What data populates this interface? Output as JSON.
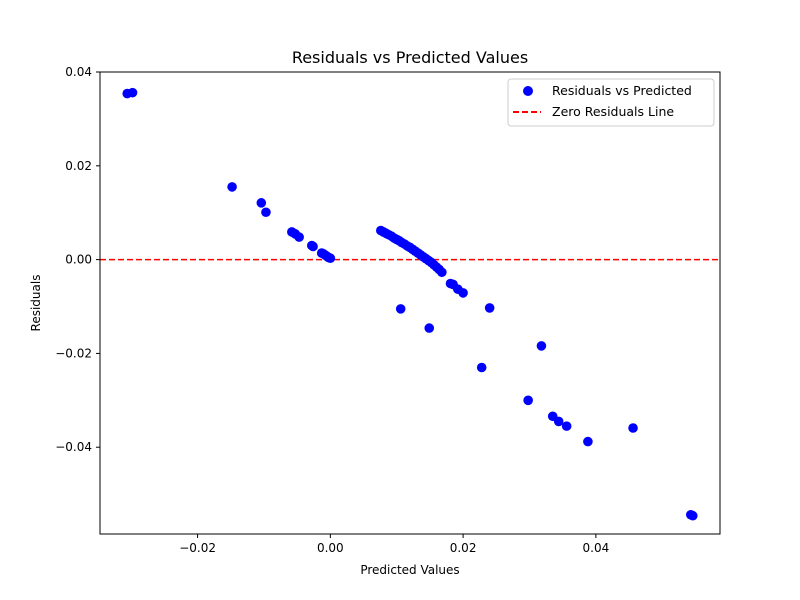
{
  "chart_data": {
    "type": "scatter",
    "title": "Residuals vs Predicted Values",
    "xlabel": "Predicted Values",
    "ylabel": "Residuals",
    "xlim": [
      -0.0347,
      0.0587
    ],
    "ylim": [
      -0.0585,
      0.04
    ],
    "xticks": [
      -0.02,
      0.0,
      0.02,
      0.04
    ],
    "xtick_labels": [
      "−0.02",
      "0.00",
      "0.02",
      "0.04"
    ],
    "yticks": [
      -0.04,
      -0.02,
      0.0,
      0.02,
      0.04
    ],
    "ytick_labels": [
      "−0.04",
      "−0.02",
      "0.00",
      "0.02",
      "0.04"
    ],
    "grid": false,
    "legend_position": "top-right",
    "series": [
      {
        "name": "Residuals vs Predicted",
        "kind": "points",
        "color": "#0000ff",
        "points": [
          [
            -0.0306,
            0.0354
          ],
          [
            -0.0298,
            0.0356
          ],
          [
            -0.0148,
            0.0155
          ],
          [
            -0.0104,
            0.0121
          ],
          [
            -0.0097,
            0.0101
          ],
          [
            -0.0058,
            0.0059
          ],
          [
            -0.0053,
            0.0055
          ],
          [
            -0.0047,
            0.0048
          ],
          [
            -0.0028,
            0.003
          ],
          [
            -0.0026,
            0.0028
          ],
          [
            -0.0013,
            0.0014
          ],
          [
            -0.001,
            0.0012
          ],
          [
            -0.0007,
            0.0009
          ],
          [
            -0.0004,
            0.0006
          ],
          [
            -0.0002,
            0.0004
          ],
          [
            0.0,
            0.0003
          ],
          [
            0.0076,
            0.0062
          ],
          [
            0.008,
            0.0059
          ],
          [
            0.0084,
            0.0056
          ],
          [
            0.0088,
            0.0053
          ],
          [
            0.0092,
            0.005
          ],
          [
            0.0096,
            0.0046
          ],
          [
            0.01,
            0.0043
          ],
          [
            0.0104,
            0.004
          ],
          [
            0.0108,
            0.0036
          ],
          [
            0.0112,
            0.0033
          ],
          [
            0.0116,
            0.0029
          ],
          [
            0.012,
            0.0026
          ],
          [
            0.0124,
            0.0022
          ],
          [
            0.0128,
            0.0018
          ],
          [
            0.0132,
            0.0014
          ],
          [
            0.0136,
            0.001
          ],
          [
            0.014,
            0.0006
          ],
          [
            0.0144,
            0.0002
          ],
          [
            0.0148,
            -0.0002
          ],
          [
            0.0152,
            -0.0006
          ],
          [
            0.0156,
            -0.0011
          ],
          [
            0.016,
            -0.0016
          ],
          [
            0.0164,
            -0.0021
          ],
          [
            0.0168,
            -0.0027
          ],
          [
            0.0181,
            -0.0051
          ],
          [
            0.0185,
            -0.0053
          ],
          [
            0.0192,
            -0.0063
          ],
          [
            0.02,
            -0.0071
          ],
          [
            0.0106,
            -0.0105
          ],
          [
            0.0149,
            -0.0146
          ],
          [
            0.024,
            -0.0103
          ],
          [
            0.0228,
            -0.023
          ],
          [
            0.0318,
            -0.0184
          ],
          [
            0.0298,
            -0.03
          ],
          [
            0.0335,
            -0.0334
          ],
          [
            0.0344,
            -0.0345
          ],
          [
            0.0356,
            -0.0355
          ],
          [
            0.0388,
            -0.0388
          ],
          [
            0.0456,
            -0.0359
          ],
          [
            0.0543,
            -0.0544
          ],
          [
            0.0546,
            -0.0546
          ]
        ]
      },
      {
        "name": "Zero Residuals Line",
        "kind": "hline",
        "y": 0.0,
        "color": "#ff0000",
        "dash": "dashed"
      }
    ]
  }
}
